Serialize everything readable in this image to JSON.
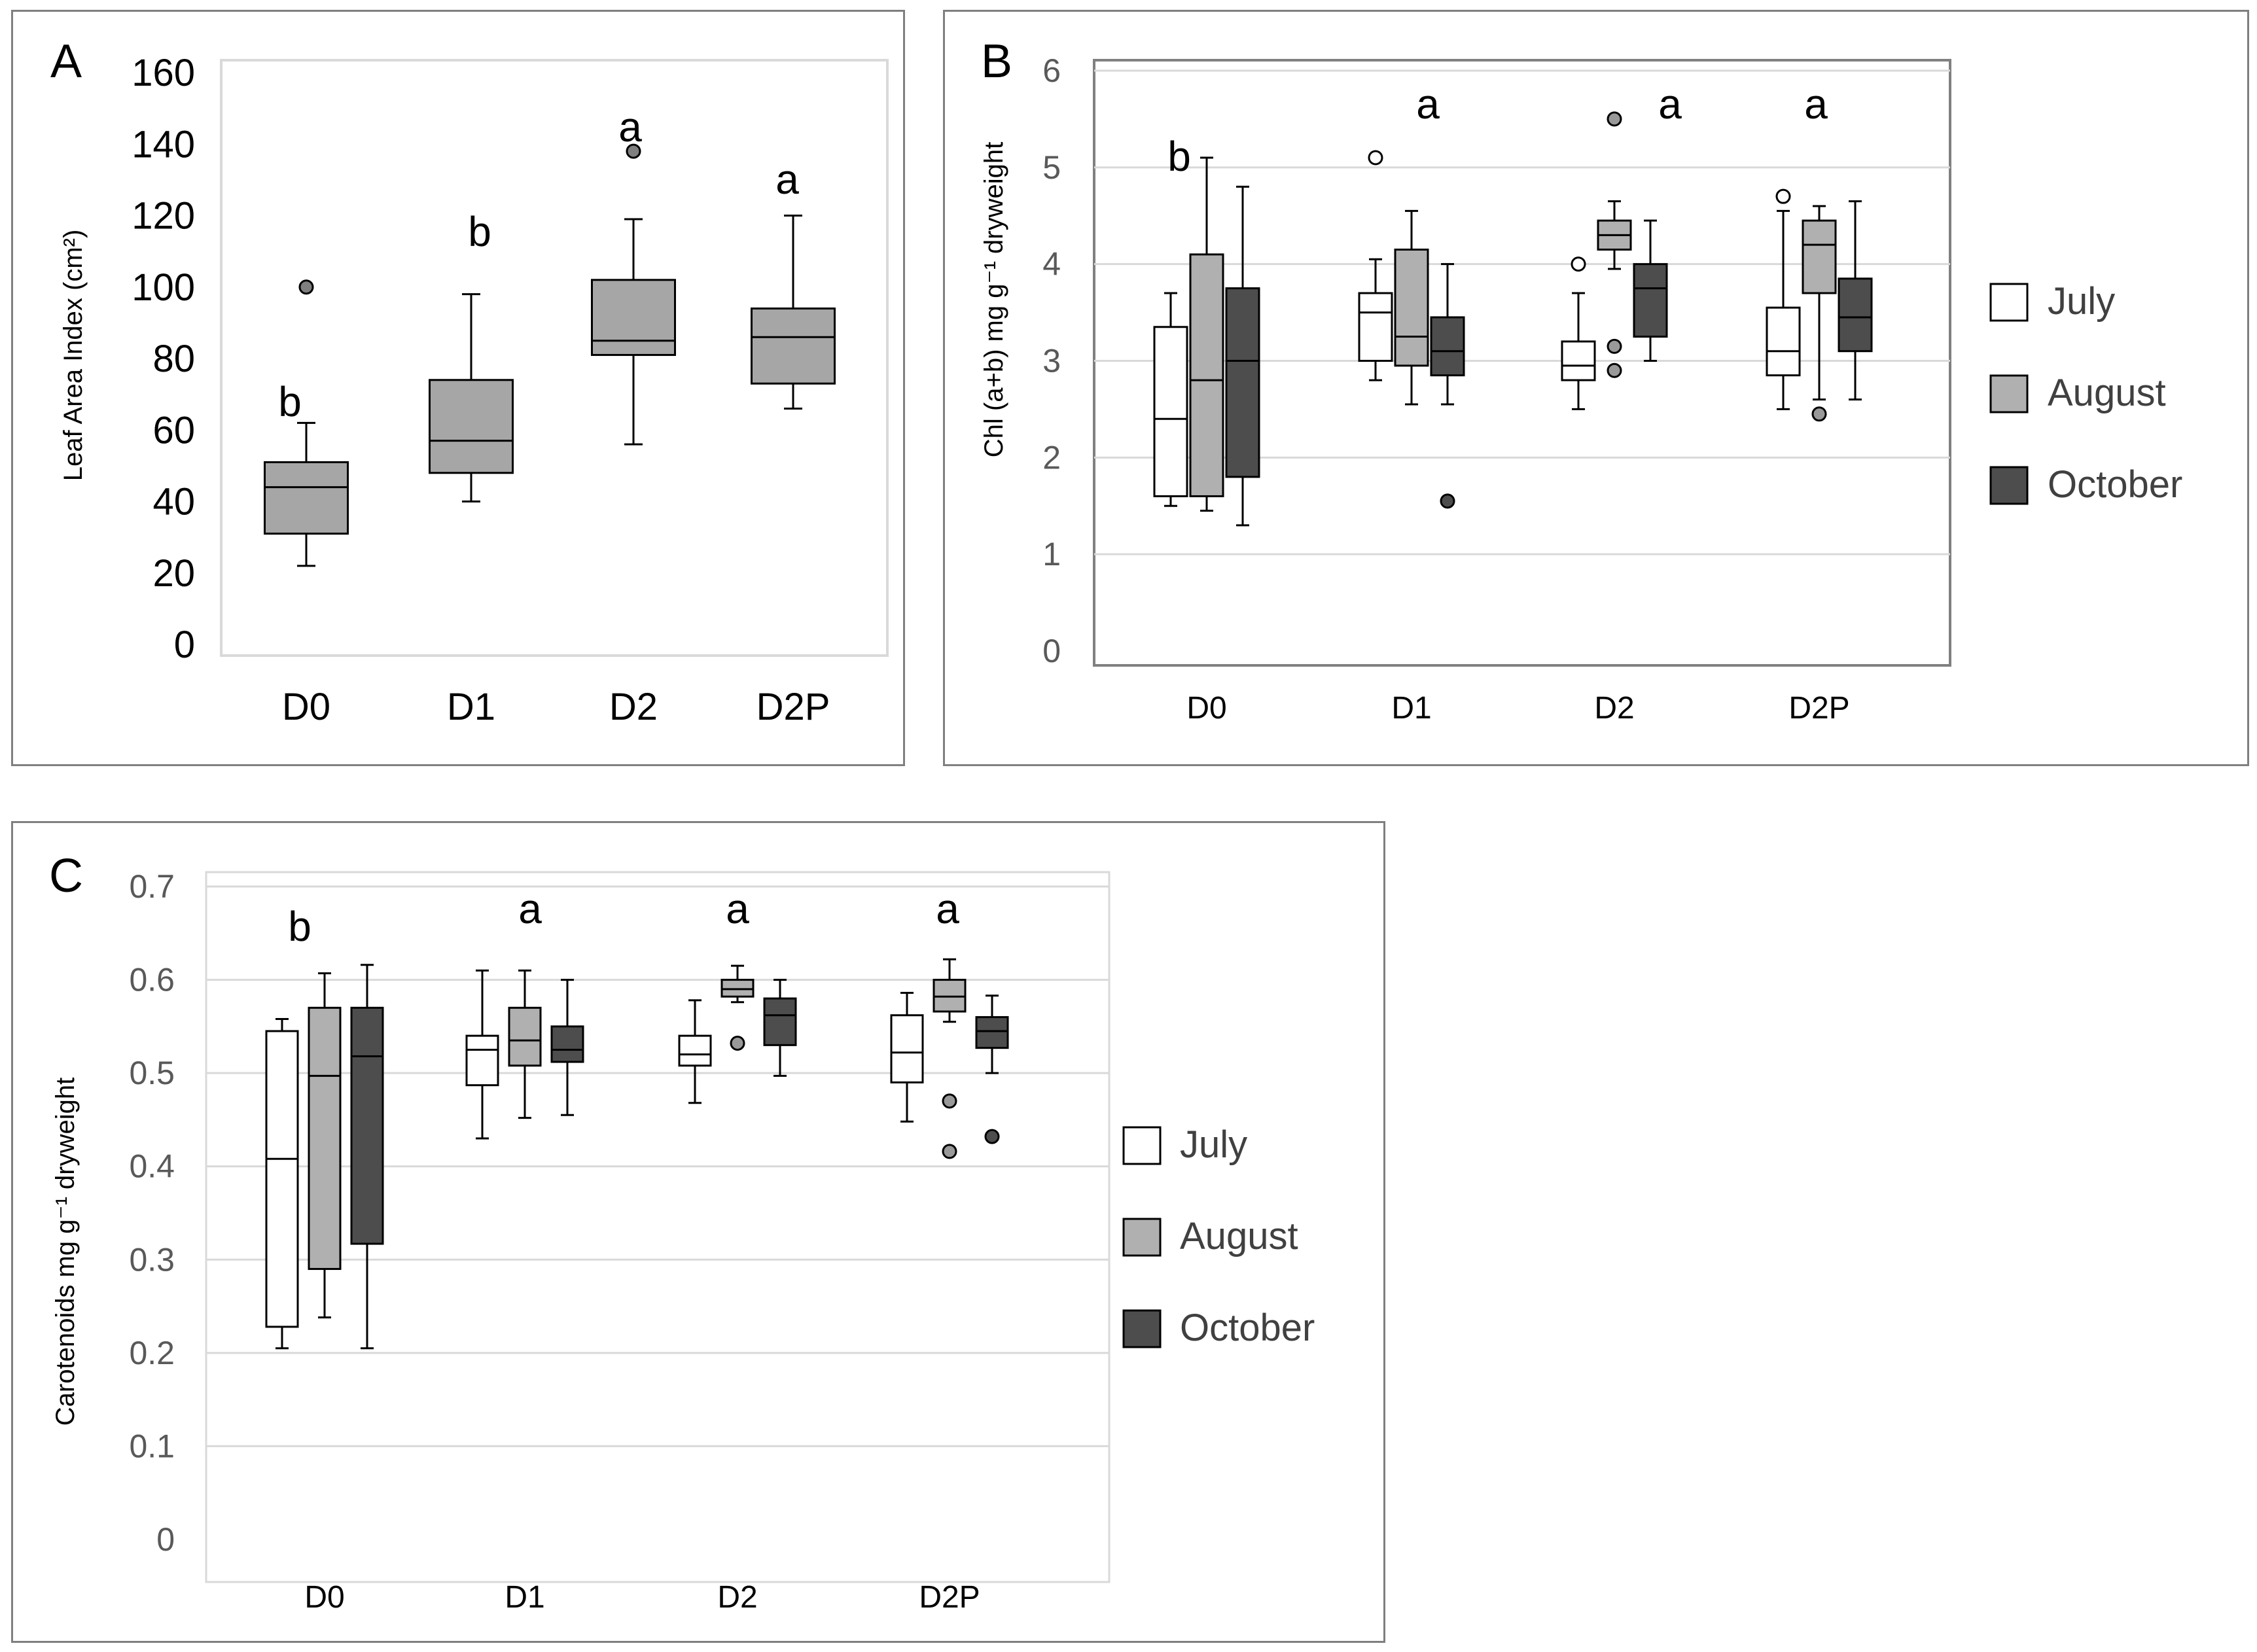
{
  "colors": {
    "july": "#ffffff",
    "august": "#b0b0b0",
    "october": "#4d4d4d",
    "single": "#a6a6a6",
    "gridline": "#d9d9d9",
    "frame": "#7f7f7f"
  },
  "chart_data": [
    {
      "type": "boxplot",
      "panel_label": "A",
      "ylabel": "Leaf Area Index (cm²)",
      "ylim": [
        0,
        160
      ],
      "yticks": [
        "0",
        "20",
        "40",
        "60",
        "80",
        "100",
        "120",
        "140",
        "160"
      ],
      "categories": [
        "D0",
        "D1",
        "D2",
        "D2P"
      ],
      "significance": [
        "b",
        "b",
        "a",
        "a"
      ],
      "series": [
        {
          "name": "Leaf Area Index",
          "boxes": [
            {
              "min": 22,
              "q1": 31,
              "median": 44,
              "q3": 51,
              "max": 62,
              "outliers": [
                100
              ]
            },
            {
              "min": 40,
              "q1": 48,
              "median": 57,
              "q3": 74,
              "max": 98,
              "outliers": []
            },
            {
              "min": 56,
              "q1": 81,
              "median": 85,
              "q3": 102,
              "max": 119,
              "outliers": [
                138
              ]
            },
            {
              "min": 66,
              "q1": 73,
              "median": 86,
              "q3": 94,
              "max": 120,
              "outliers": []
            }
          ]
        }
      ]
    },
    {
      "type": "boxplot",
      "panel_label": "B",
      "ylabel": "Chl (a+b) mg g⁻¹ dryweight",
      "ylim": [
        0,
        6
      ],
      "yticks": [
        "0",
        "1",
        "2",
        "3",
        "4",
        "5",
        "6"
      ],
      "categories": [
        "D0",
        "D1",
        "D2",
        "D2P"
      ],
      "significance": [
        "b",
        "a",
        "a",
        "a"
      ],
      "legend": [
        "July",
        "August",
        "October"
      ],
      "series": [
        {
          "name": "July",
          "boxes": [
            {
              "min": 1.5,
              "q1": 1.6,
              "median": 2.4,
              "q3": 3.35,
              "max": 3.7,
              "outliers": []
            },
            {
              "min": 2.8,
              "q1": 3.0,
              "median": 3.5,
              "q3": 3.7,
              "max": 4.05,
              "outliers": [
                5.1
              ]
            },
            {
              "min": 2.5,
              "q1": 2.8,
              "median": 2.95,
              "q3": 3.2,
              "max": 3.7,
              "outliers": [
                4.0
              ]
            },
            {
              "min": 2.5,
              "q1": 2.85,
              "median": 3.1,
              "q3": 3.55,
              "max": 4.55,
              "outliers": [
                4.7
              ]
            }
          ]
        },
        {
          "name": "August",
          "boxes": [
            {
              "min": 1.45,
              "q1": 1.6,
              "median": 2.8,
              "q3": 4.1,
              "max": 5.1,
              "outliers": []
            },
            {
              "min": 2.55,
              "q1": 2.95,
              "median": 3.25,
              "q3": 4.15,
              "max": 4.55,
              "outliers": []
            },
            {
              "min": 3.95,
              "q1": 4.15,
              "median": 4.3,
              "q3": 4.45,
              "max": 4.65,
              "outliers": [
                5.5,
                3.15,
                2.9
              ]
            },
            {
              "min": 2.6,
              "q1": 3.7,
              "median": 4.2,
              "q3": 4.45,
              "max": 4.6,
              "outliers": [
                2.45
              ]
            }
          ]
        },
        {
          "name": "October",
          "boxes": [
            {
              "min": 1.3,
              "q1": 1.8,
              "median": 3.0,
              "q3": 3.75,
              "max": 4.8,
              "outliers": []
            },
            {
              "min": 2.55,
              "q1": 2.85,
              "median": 3.1,
              "q3": 3.45,
              "max": 4.0,
              "outliers": [
                1.55
              ]
            },
            {
              "min": 3.0,
              "q1": 3.25,
              "median": 3.75,
              "q3": 4.0,
              "max": 4.45,
              "outliers": []
            },
            {
              "min": 2.6,
              "q1": 3.1,
              "median": 3.45,
              "q3": 3.85,
              "max": 4.65,
              "outliers": []
            }
          ]
        }
      ]
    },
    {
      "type": "boxplot",
      "panel_label": "C",
      "ylabel": "Carotenoids mg g⁻¹ dryweight",
      "ylim": [
        0,
        0.7
      ],
      "yticks": [
        "0",
        "0.1",
        "0.2",
        "0.3",
        "0.4",
        "0.5",
        "0.6",
        "0.7"
      ],
      "categories": [
        "D0",
        "D1",
        "D2",
        "D2P"
      ],
      "significance": [
        "b",
        "a",
        "a",
        "a"
      ],
      "legend": [
        "July",
        "August",
        "October"
      ],
      "series": [
        {
          "name": "July",
          "boxes": [
            {
              "min": 0.205,
              "q1": 0.228,
              "median": 0.408,
              "q3": 0.545,
              "max": 0.558,
              "outliers": []
            },
            {
              "min": 0.43,
              "q1": 0.487,
              "median": 0.525,
              "q3": 0.54,
              "max": 0.61,
              "outliers": []
            },
            {
              "min": 0.468,
              "q1": 0.508,
              "median": 0.52,
              "q3": 0.54,
              "max": 0.578,
              "outliers": []
            },
            {
              "min": 0.448,
              "q1": 0.49,
              "median": 0.522,
              "q3": 0.562,
              "max": 0.586,
              "outliers": []
            }
          ]
        },
        {
          "name": "August",
          "boxes": [
            {
              "min": 0.238,
              "q1": 0.29,
              "median": 0.497,
              "q3": 0.57,
              "max": 0.607,
              "outliers": []
            },
            {
              "min": 0.452,
              "q1": 0.508,
              "median": 0.535,
              "q3": 0.57,
              "max": 0.61,
              "outliers": []
            },
            {
              "min": 0.576,
              "q1": 0.582,
              "median": 0.59,
              "q3": 0.6,
              "max": 0.615,
              "outliers": [
                0.532
              ]
            },
            {
              "min": 0.555,
              "q1": 0.566,
              "median": 0.582,
              "q3": 0.6,
              "max": 0.622,
              "outliers": [
                0.47,
                0.416
              ]
            }
          ]
        },
        {
          "name": "October",
          "boxes": [
            {
              "min": 0.205,
              "q1": 0.317,
              "median": 0.518,
              "q3": 0.57,
              "max": 0.616,
              "outliers": []
            },
            {
              "min": 0.455,
              "q1": 0.512,
              "median": 0.525,
              "q3": 0.55,
              "max": 0.6,
              "outliers": []
            },
            {
              "min": 0.497,
              "q1": 0.53,
              "median": 0.562,
              "q3": 0.58,
              "max": 0.6,
              "outliers": []
            },
            {
              "min": 0.5,
              "q1": 0.527,
              "median": 0.545,
              "q3": 0.56,
              "max": 0.583,
              "outliers": [
                0.432
              ]
            }
          ]
        }
      ]
    }
  ]
}
